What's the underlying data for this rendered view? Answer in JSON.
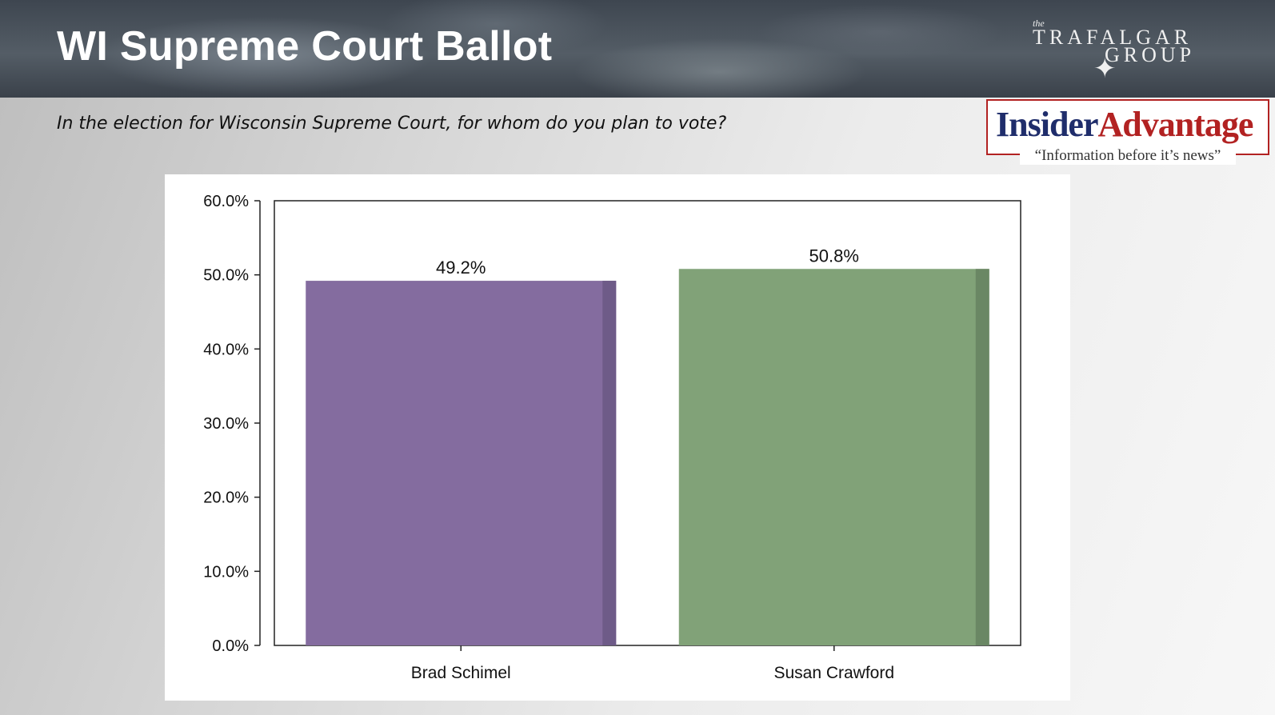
{
  "header": {
    "title": "WI Supreme Court Ballot",
    "logo_trafalgar": {
      "the": "the",
      "line1": "TRAFALGAR",
      "line2": "GROUP"
    }
  },
  "question": "In the election for Wisconsin Supreme Court, for whom do you plan to vote?",
  "logo_insider": {
    "brand_part1": "Insider",
    "brand_part2": "Advantage",
    "tagline": "“Information before it’s news”"
  },
  "chart_data": {
    "type": "bar",
    "title": "",
    "xlabel": "",
    "ylabel": "",
    "categories": [
      "Brad Schimel",
      "Susan Crawford"
    ],
    "values": [
      49.2,
      50.8
    ],
    "value_labels": [
      "49.2%",
      "50.8%"
    ],
    "colors": [
      "#846c9f",
      "#81a278"
    ],
    "shade_colors": [
      "#6e5b88",
      "#6a8764"
    ],
    "ylim": [
      0,
      60
    ],
    "yticks": [
      "0.0%",
      "10.0%",
      "20.0%",
      "30.0%",
      "40.0%",
      "50.0%",
      "60.0%"
    ],
    "ytick_values": [
      0,
      10,
      20,
      30,
      40,
      50,
      60
    ],
    "grid": false,
    "legend": "none"
  }
}
